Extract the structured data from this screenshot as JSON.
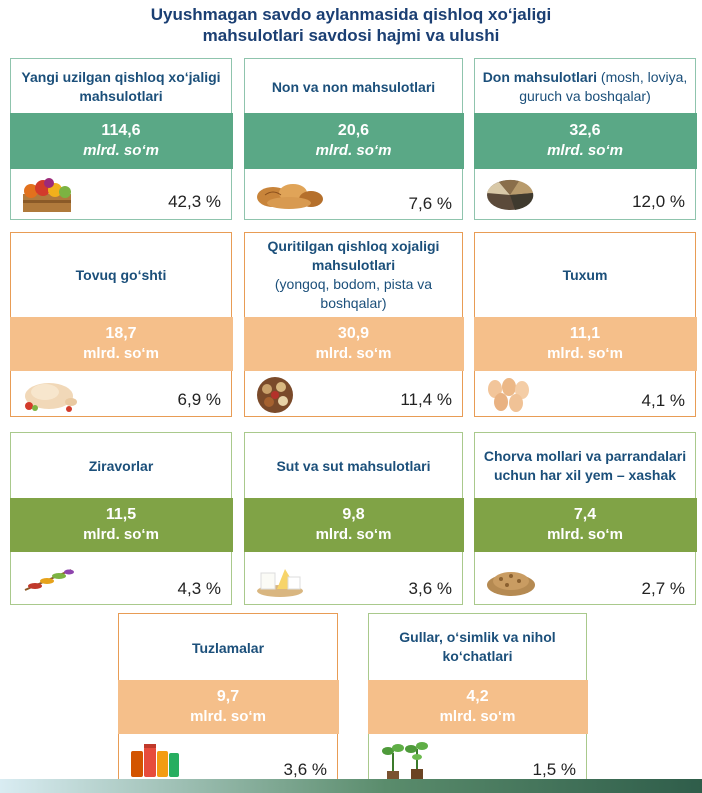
{
  "title": {
    "line1": "Uyushmagan savdo aylanmasida qishloq xo‘jaligi",
    "line2": "mahsulotlari savdosi hajmi va ulushi"
  },
  "cards": [
    {
      "label": "Yangi uzilgan qishloq xo‘jaligi mahsulotlari",
      "label_extra": "",
      "value": "114,6",
      "unit": "mlrd. so‘m",
      "percent": "42,3 %",
      "icon": "fruit-crate-icon"
    },
    {
      "label": "Non va non mahsulotlari",
      "label_extra": "",
      "value": "20,6",
      "unit": "mlrd. so‘m",
      "percent": "7,6 %",
      "icon": "bread-icon"
    },
    {
      "label": "Don mahsulotlari",
      "label_extra": " (mosh, loviya, guruch va boshqalar)",
      "value": "32,6",
      "unit": "mlrd. so‘m",
      "percent": "12,0 %",
      "icon": "grains-icon"
    },
    {
      "label": "Tovuq go‘shti",
      "label_extra": "",
      "value": "18,7",
      "unit": "mlrd. so‘m",
      "percent": "6,9 %",
      "icon": "chicken-icon"
    },
    {
      "label": "Quritilgan qishloq xojaligi mahsulotlari",
      "label_extra": "(yongoq, bodom, pista va boshqalar)",
      "value": "30,9",
      "unit": "mlrd. so‘m",
      "percent": "11,4 %",
      "icon": "dried-nuts-icon"
    },
    {
      "label": "Tuxum",
      "label_extra": "",
      "value": "11,1",
      "unit": "mlrd. so‘m",
      "percent": "4,1 %",
      "icon": "eggs-icon"
    },
    {
      "label": "Ziravorlar",
      "label_extra": "",
      "value": "11,5",
      "unit": "mlrd. so‘m",
      "percent": "4,3 %",
      "icon": "spices-icon"
    },
    {
      "label": "Sut va sut mahsulotlari",
      "label_extra": "",
      "value": "9,8",
      "unit": "mlrd. so‘m",
      "percent": "3,6 %",
      "icon": "dairy-icon"
    },
    {
      "label": "Chorva mollari va parrandalari uchun har xil yem – xashak",
      "label_extra": "",
      "value": "7,4",
      "unit": "mlrd. so‘m",
      "percent": "2,7 %",
      "icon": "feed-pellets-icon"
    },
    {
      "label": "Tuzlamalar",
      "label_extra": "",
      "value": "9,7",
      "unit": "mlrd. so‘m",
      "percent": "3,6 %",
      "icon": "pickle-jars-icon"
    },
    {
      "label": "Gullar, o‘simlik va nihol ko‘chatlari",
      "label_extra": "",
      "value": "4,2",
      "unit": "mlrd. so‘m",
      "percent": "1,5 %",
      "icon": "seedlings-icon"
    }
  ]
}
